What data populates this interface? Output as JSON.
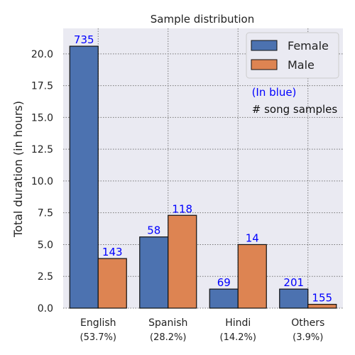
{
  "chart_data": {
    "type": "bar",
    "title": "Sample distribution",
    "xlabel": "",
    "ylabel": "Total duration (in hours)",
    "ylim": [
      0,
      22
    ],
    "yticks": [
      "0.0",
      "2.5",
      "5.0",
      "7.5",
      "10.0",
      "12.5",
      "15.0",
      "17.5",
      "20.0"
    ],
    "grid": true,
    "legend_position": "top-right",
    "categories": [
      "English",
      "Spanish",
      "Hindi",
      "Others"
    ],
    "category_percentages": [
      "(53.7%)",
      "(28.2%)",
      "(14.2%)",
      "(3.9%)"
    ],
    "series": [
      {
        "name": "Female",
        "color": "#4c72b0",
        "values": [
          20.6,
          5.6,
          1.5,
          1.5
        ],
        "labels": [
          "735",
          "58",
          "69",
          "201"
        ]
      },
      {
        "name": "Male",
        "color": "#dd8452",
        "values": [
          3.9,
          7.3,
          5.0,
          0.3
        ],
        "labels": [
          "143",
          "118",
          "14",
          "155"
        ]
      }
    ],
    "annotations": [
      "(In blue)",
      "# song samples"
    ],
    "annotation_color": "#0000ff",
    "bar_label_color": "#0000ff",
    "background_color": "#eaeaf2"
  }
}
